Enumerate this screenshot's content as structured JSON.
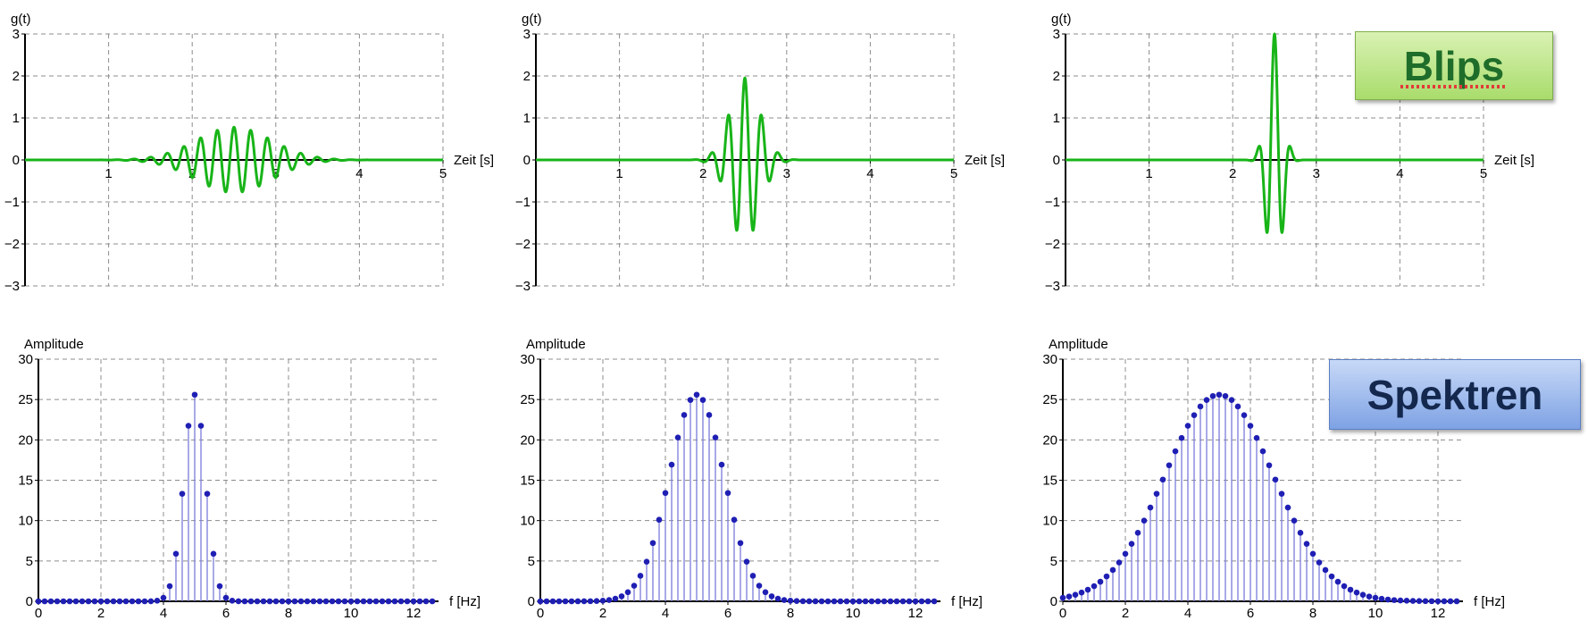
{
  "labels": {
    "blips": "Blips",
    "spektren": "Spektren"
  },
  "colors": {
    "time_signal": "#18b418",
    "spectrum": "#1f1fb4",
    "spectrum_stem": "#7b7bdb",
    "axis": "#000000",
    "grid": "#8c8c8c"
  },
  "chart_data": [
    {
      "type": "line",
      "row": "top",
      "ylabel": "g(t)",
      "xlabel": "Zeit [s]",
      "xlim": [
        0,
        5
      ],
      "ylim": [
        -3,
        3
      ],
      "xticks": [
        1,
        2,
        3,
        4,
        5
      ],
      "yticks": [
        -3,
        -2,
        -1,
        0,
        1,
        2,
        3
      ],
      "grid": true,
      "series": [
        {
          "center": 2.5,
          "frequency": 5,
          "amplitude": 0.78,
          "envelope_sigma": 0.45
        }
      ]
    },
    {
      "type": "line",
      "row": "top",
      "ylabel": "g(t)",
      "xlabel": "Zeit [s]",
      "xlim": [
        0,
        5
      ],
      "ylim": [
        -3,
        3
      ],
      "xticks": [
        1,
        2,
        3,
        4,
        5
      ],
      "yticks": [
        -3,
        -2,
        -1,
        0,
        1,
        2,
        3
      ],
      "grid": true,
      "series": [
        {
          "center": 2.5,
          "frequency": 5,
          "amplitude": 1.95,
          "envelope_sigma": 0.18
        }
      ]
    },
    {
      "type": "line",
      "row": "top",
      "ylabel": "g(t)",
      "xlabel": "Zeit [s]",
      "xlim": [
        0,
        5
      ],
      "ylim": [
        -3,
        3
      ],
      "xticks": [
        1,
        2,
        3,
        4,
        5
      ],
      "yticks": [
        -3,
        -2,
        -1,
        0,
        1,
        2,
        3
      ],
      "grid": true,
      "series": [
        {
          "center": 2.5,
          "frequency": 5,
          "amplitude": 3.0,
          "envelope_sigma": 0.09
        }
      ]
    },
    {
      "type": "stem",
      "row": "bottom",
      "ylabel": "Amplitude",
      "xlabel": "f [Hz]",
      "xlim": [
        0,
        12.8
      ],
      "ylim": [
        0,
        30
      ],
      "xticks": [
        0,
        2,
        4,
        6,
        8,
        10,
        12
      ],
      "yticks": [
        0,
        5,
        10,
        15,
        20,
        25,
        30
      ],
      "grid": true,
      "series": [
        {
          "peak_frequency": 5,
          "peak_amplitude": 25.6,
          "spectral_sigma": 0.35,
          "frequency_step": 0.2
        }
      ]
    },
    {
      "type": "stem",
      "row": "bottom",
      "ylabel": "Amplitude",
      "xlabel": "f [Hz]",
      "xlim": [
        0,
        12.8
      ],
      "ylim": [
        0,
        30
      ],
      "xticks": [
        0,
        2,
        4,
        6,
        8,
        10,
        12
      ],
      "yticks": [
        0,
        5,
        10,
        15,
        20,
        25,
        30
      ],
      "grid": true,
      "series": [
        {
          "peak_frequency": 5,
          "peak_amplitude": 25.6,
          "spectral_sigma": 0.88,
          "frequency_step": 0.2
        }
      ]
    },
    {
      "type": "stem",
      "row": "bottom",
      "ylabel": "Amplitude",
      "xlabel": "f [Hz]",
      "xlim": [
        0,
        12.8
      ],
      "ylim": [
        0,
        30
      ],
      "xticks": [
        0,
        2,
        4,
        6,
        8,
        10,
        12
      ],
      "yticks": [
        0,
        5,
        10,
        15,
        20,
        25,
        30
      ],
      "grid": true,
      "series": [
        {
          "peak_frequency": 5,
          "peak_amplitude": 25.6,
          "spectral_sigma": 1.75,
          "frequency_step": 0.2
        }
      ]
    }
  ]
}
